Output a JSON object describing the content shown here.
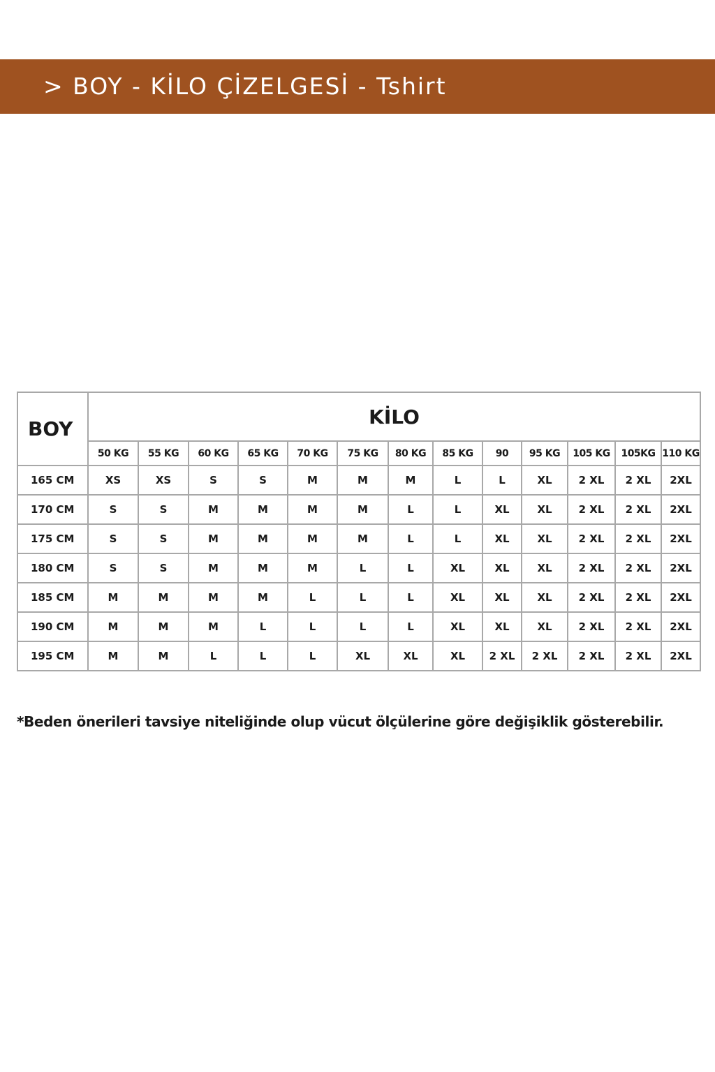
{
  "header": {
    "title": "> BOY - KİLO ÇİZELGESİ - Tshirt"
  },
  "table": {
    "row_header": "BOY",
    "column_group": "KİLO",
    "columns": [
      "50 KG",
      "55 KG",
      "60 KG",
      "65 KG",
      "70 KG",
      "75 KG",
      "80 KG",
      "85 KG",
      "90",
      "95 KG",
      "105 KG",
      "105KG",
      "110 KG"
    ],
    "rows": [
      {
        "label": "165 CM",
        "cells": [
          "XS",
          "XS",
          "S",
          "S",
          "M",
          "M",
          "M",
          "L",
          "L",
          "XL",
          "2 XL",
          "2 XL",
          "2XL"
        ]
      },
      {
        "label": "170 CM",
        "cells": [
          "S",
          "S",
          "M",
          "M",
          "M",
          "M",
          "L",
          "L",
          "XL",
          "XL",
          "2 XL",
          "2 XL",
          "2XL"
        ]
      },
      {
        "label": "175 CM",
        "cells": [
          "S",
          "S",
          "M",
          "M",
          "M",
          "M",
          "L",
          "L",
          "XL",
          "XL",
          "2 XL",
          "2 XL",
          "2XL"
        ]
      },
      {
        "label": "180 CM",
        "cells": [
          "S",
          "S",
          "M",
          "M",
          "M",
          "L",
          "L",
          "XL",
          "XL",
          "XL",
          "2 XL",
          "2 XL",
          "2XL"
        ]
      },
      {
        "label": "185 CM",
        "cells": [
          "M",
          "M",
          "M",
          "M",
          "L",
          "L",
          "L",
          "XL",
          "XL",
          "XL",
          "2 XL",
          "2 XL",
          "2XL"
        ]
      },
      {
        "label": "190 CM",
        "cells": [
          "M",
          "M",
          "M",
          "L",
          "L",
          "L",
          "L",
          "XL",
          "XL",
          "XL",
          "2 XL",
          "2 XL",
          "2XL"
        ]
      },
      {
        "label": "195 CM",
        "cells": [
          "M",
          "M",
          "L",
          "L",
          "L",
          "XL",
          "XL",
          "XL",
          "2 XL",
          "2 XL",
          "2 XL",
          "2 XL",
          "2XL"
        ]
      }
    ]
  },
  "note": "*Beden önerileri tavsiye niteliğinde olup vücut ölçülerine göre değişiklik gösterebilir."
}
